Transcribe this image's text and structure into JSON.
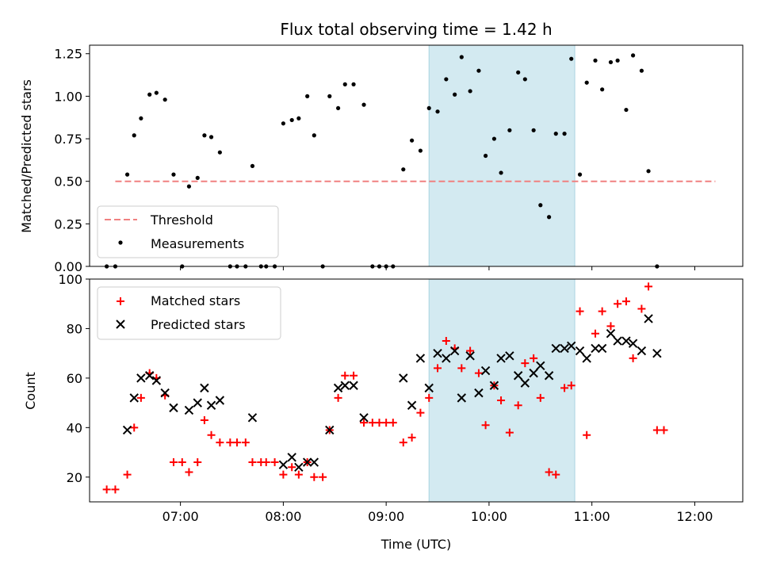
{
  "chart_data": [
    {
      "type": "scatter",
      "title": "Flux total observing time = 1.42 h",
      "xlabel": "",
      "ylabel": "Matched/Predicted stars",
      "ylim": [
        0,
        1.3
      ],
      "xlim": [
        "06:07",
        "12:28"
      ],
      "yticks": [
        "0.00",
        "0.25",
        "0.50",
        "0.75",
        "1.00",
        "1.25"
      ],
      "highlight_span": {
        "start": "09:25",
        "end": "10:50",
        "color": "#d3eaf1"
      },
      "legend_position": "lower-left",
      "colors": {
        "threshold": "#f08080",
        "measurements": "#000000"
      },
      "series": [
        {
          "name": "Threshold",
          "kind": "dashed-line",
          "points": [
            [
              "06:22",
              0.5
            ],
            [
              "12:12",
              0.5
            ]
          ]
        },
        {
          "name": "Measurements",
          "kind": "dots",
          "points": [
            [
              "06:17",
              0.0
            ],
            [
              "06:22",
              0.0
            ],
            [
              "06:29",
              0.54
            ],
            [
              "06:33",
              0.77
            ],
            [
              "06:37",
              0.87
            ],
            [
              "06:42",
              1.01
            ],
            [
              "06:46",
              1.02
            ],
            [
              "06:51",
              0.98
            ],
            [
              "06:56",
              0.54
            ],
            [
              "07:01",
              0.0
            ],
            [
              "07:05",
              0.47
            ],
            [
              "07:10",
              0.52
            ],
            [
              "07:14",
              0.77
            ],
            [
              "07:18",
              0.76
            ],
            [
              "07:23",
              0.67
            ],
            [
              "07:29",
              0.0
            ],
            [
              "07:33",
              0.0
            ],
            [
              "07:38",
              0.0
            ],
            [
              "07:42",
              0.59
            ],
            [
              "07:47",
              0.0
            ],
            [
              "07:50",
              0.0
            ],
            [
              "07:55",
              0.0
            ],
            [
              "08:00",
              0.84
            ],
            [
              "08:05",
              0.86
            ],
            [
              "08:09",
              0.87
            ],
            [
              "08:14",
              1.0
            ],
            [
              "08:18",
              0.77
            ],
            [
              "08:23",
              0.0
            ],
            [
              "08:27",
              1.0
            ],
            [
              "08:32",
              0.93
            ],
            [
              "08:36",
              1.07
            ],
            [
              "08:41",
              1.07
            ],
            [
              "08:47",
              0.95
            ],
            [
              "08:52",
              0.0
            ],
            [
              "08:56",
              0.0
            ],
            [
              "09:00",
              0.0
            ],
            [
              "09:04",
              0.0
            ],
            [
              "09:10",
              0.57
            ],
            [
              "09:15",
              0.74
            ],
            [
              "09:20",
              0.68
            ],
            [
              "09:25",
              0.93
            ],
            [
              "09:30",
              0.91
            ],
            [
              "09:35",
              1.1
            ],
            [
              "09:40",
              1.01
            ],
            [
              "09:44",
              1.23
            ],
            [
              "09:49",
              1.03
            ],
            [
              "09:54",
              1.15
            ],
            [
              "09:58",
              0.65
            ],
            [
              "10:03",
              0.75
            ],
            [
              "10:07",
              0.55
            ],
            [
              "10:12",
              0.8
            ],
            [
              "10:17",
              1.14
            ],
            [
              "10:21",
              1.1
            ],
            [
              "10:26",
              0.8
            ],
            [
              "10:30",
              0.36
            ],
            [
              "10:35",
              0.29
            ],
            [
              "10:39",
              0.78
            ],
            [
              "10:44",
              0.78
            ],
            [
              "10:48",
              1.22
            ],
            [
              "10:53",
              0.54
            ],
            [
              "10:57",
              1.08
            ],
            [
              "11:02",
              1.21
            ],
            [
              "11:06",
              1.04
            ],
            [
              "11:11",
              1.2
            ],
            [
              "11:15",
              1.21
            ],
            [
              "11:20",
              0.92
            ],
            [
              "11:24",
              1.24
            ],
            [
              "11:29",
              1.15
            ],
            [
              "11:33",
              0.56
            ],
            [
              "11:38",
              0.0
            ]
          ]
        }
      ]
    },
    {
      "type": "scatter",
      "title": "",
      "xlabel": "Time (UTC)",
      "ylabel": "Count",
      "ylim": [
        10,
        100
      ],
      "xlim": [
        "06:07",
        "12:28"
      ],
      "xticks": [
        "07:00",
        "08:00",
        "09:00",
        "10:00",
        "11:00",
        "12:00"
      ],
      "yticks": [
        "20",
        "40",
        "60",
        "80",
        "100"
      ],
      "highlight_span": {
        "start": "09:25",
        "end": "10:50",
        "color": "#d3eaf1"
      },
      "legend_position": "upper-left",
      "colors": {
        "matched": "#ff0000",
        "predicted": "#000000"
      },
      "series": [
        {
          "name": "Matched stars",
          "marker": "plus",
          "points": [
            [
              "06:17",
              15
            ],
            [
              "06:22",
              15
            ],
            [
              "06:29",
              21
            ],
            [
              "06:33",
              40
            ],
            [
              "06:37",
              52
            ],
            [
              "06:42",
              62
            ],
            [
              "06:46",
              60
            ],
            [
              "06:51",
              53
            ],
            [
              "06:56",
              26
            ],
            [
              "07:01",
              26
            ],
            [
              "07:05",
              22
            ],
            [
              "07:10",
              26
            ],
            [
              "07:14",
              43
            ],
            [
              "07:18",
              37
            ],
            [
              "07:23",
              34
            ],
            [
              "07:29",
              34
            ],
            [
              "07:33",
              34
            ],
            [
              "07:38",
              34
            ],
            [
              "07:42",
              26
            ],
            [
              "07:47",
              26
            ],
            [
              "07:50",
              26
            ],
            [
              "07:55",
              26
            ],
            [
              "08:00",
              21
            ],
            [
              "08:05",
              24
            ],
            [
              "08:09",
              21
            ],
            [
              "08:14",
              26
            ],
            [
              "08:18",
              20
            ],
            [
              "08:23",
              20
            ],
            [
              "08:27",
              39
            ],
            [
              "08:32",
              52
            ],
            [
              "08:36",
              61
            ],
            [
              "08:41",
              61
            ],
            [
              "08:47",
              42
            ],
            [
              "08:52",
              42
            ],
            [
              "08:56",
              42
            ],
            [
              "09:00",
              42
            ],
            [
              "09:04",
              42
            ],
            [
              "09:10",
              34
            ],
            [
              "09:15",
              36
            ],
            [
              "09:20",
              46
            ],
            [
              "09:25",
              52
            ],
            [
              "09:30",
              64
            ],
            [
              "09:35",
              75
            ],
            [
              "09:40",
              72
            ],
            [
              "09:44",
              64
            ],
            [
              "09:49",
              71
            ],
            [
              "09:54",
              62
            ],
            [
              "09:58",
              41
            ],
            [
              "10:03",
              57
            ],
            [
              "10:07",
              51
            ],
            [
              "10:12",
              38
            ],
            [
              "10:17",
              49
            ],
            [
              "10:21",
              66
            ],
            [
              "10:26",
              68
            ],
            [
              "10:30",
              52
            ],
            [
              "10:35",
              22
            ],
            [
              "10:39",
              21
            ],
            [
              "10:44",
              56
            ],
            [
              "10:48",
              57
            ],
            [
              "10:53",
              87
            ],
            [
              "10:57",
              37
            ],
            [
              "11:02",
              78
            ],
            [
              "11:06",
              87
            ],
            [
              "11:11",
              81
            ],
            [
              "11:15",
              90
            ],
            [
              "11:20",
              91
            ],
            [
              "11:24",
              68
            ],
            [
              "11:29",
              88
            ],
            [
              "11:33",
              97
            ],
            [
              "11:38",
              39
            ],
            [
              "11:42",
              39
            ]
          ]
        },
        {
          "name": "Predicted stars",
          "marker": "x",
          "points": [
            [
              "06:29",
              39
            ],
            [
              "06:33",
              52
            ],
            [
              "06:37",
              60
            ],
            [
              "06:42",
              61
            ],
            [
              "06:46",
              59
            ],
            [
              "06:51",
              54
            ],
            [
              "06:56",
              48
            ],
            [
              "07:05",
              47
            ],
            [
              "07:10",
              50
            ],
            [
              "07:14",
              56
            ],
            [
              "07:18",
              49
            ],
            [
              "07:23",
              51
            ],
            [
              "07:42",
              44
            ],
            [
              "08:00",
              25
            ],
            [
              "08:05",
              28
            ],
            [
              "08:09",
              24
            ],
            [
              "08:14",
              26
            ],
            [
              "08:18",
              26
            ],
            [
              "08:27",
              39
            ],
            [
              "08:32",
              56
            ],
            [
              "08:36",
              57
            ],
            [
              "08:41",
              57
            ],
            [
              "08:47",
              44
            ],
            [
              "09:10",
              60
            ],
            [
              "09:15",
              49
            ],
            [
              "09:20",
              68
            ],
            [
              "09:25",
              56
            ],
            [
              "09:30",
              70
            ],
            [
              "09:35",
              68
            ],
            [
              "09:40",
              71
            ],
            [
              "09:44",
              52
            ],
            [
              "09:49",
              69
            ],
            [
              "09:54",
              54
            ],
            [
              "09:58",
              63
            ],
            [
              "10:03",
              57
            ],
            [
              "10:07",
              68
            ],
            [
              "10:12",
              69
            ],
            [
              "10:17",
              61
            ],
            [
              "10:21",
              58
            ],
            [
              "10:26",
              62
            ],
            [
              "10:30",
              65
            ],
            [
              "10:35",
              61
            ],
            [
              "10:39",
              72
            ],
            [
              "10:44",
              72
            ],
            [
              "10:48",
              73
            ],
            [
              "10:53",
              71
            ],
            [
              "10:57",
              68
            ],
            [
              "11:02",
              72
            ],
            [
              "11:06",
              72
            ],
            [
              "11:11",
              78
            ],
            [
              "11:15",
              75
            ],
            [
              "11:20",
              75
            ],
            [
              "11:24",
              74
            ],
            [
              "11:29",
              71
            ],
            [
              "11:33",
              84
            ],
            [
              "11:38",
              70
            ]
          ]
        }
      ]
    }
  ]
}
